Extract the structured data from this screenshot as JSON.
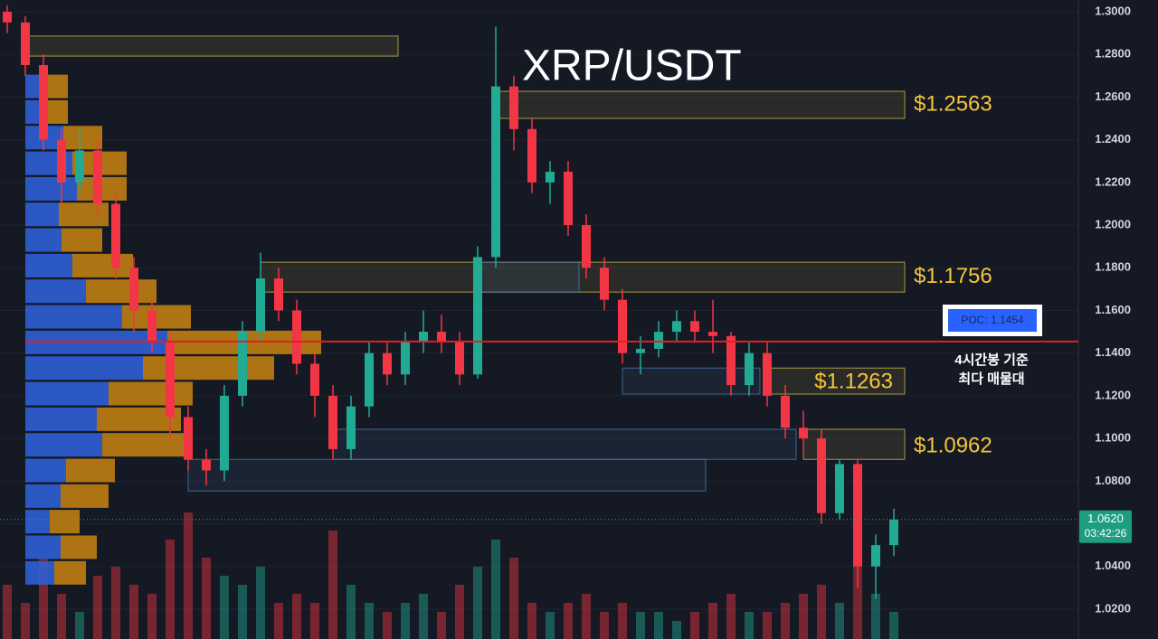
{
  "chart_data": {
    "type": "candlestick",
    "title": "XRP/USDT",
    "ylim": [
      1.006,
      1.3055
    ],
    "yticks": [
      {
        "value": 1.3,
        "label": "1.3000"
      },
      {
        "value": 1.28,
        "label": "1.2800"
      },
      {
        "value": 1.26,
        "label": "1.2600"
      },
      {
        "value": 1.24,
        "label": "1.2400"
      },
      {
        "value": 1.22,
        "label": "1.2200"
      },
      {
        "value": 1.2,
        "label": "1.2000"
      },
      {
        "value": 1.18,
        "label": "1.1800"
      },
      {
        "value": 1.16,
        "label": "1.1600"
      },
      {
        "value": 1.14,
        "label": "1.1400"
      },
      {
        "value": 1.12,
        "label": "1.1200"
      },
      {
        "value": 1.1,
        "label": "1.1000"
      },
      {
        "value": 1.08,
        "label": "1.0800"
      },
      {
        "value": 1.06,
        "label": "1.0600"
      },
      {
        "value": 1.04,
        "label": "1.0400"
      },
      {
        "value": 1.02,
        "label": "1.0200"
      }
    ],
    "grid": true,
    "up_color": "#22ab94",
    "down_color": "#f23645",
    "open": [
      1.3,
      1.295,
      1.275,
      1.24,
      1.22,
      1.235,
      1.21,
      1.18,
      1.16,
      1.145,
      1.11,
      1.09,
      1.085,
      1.12,
      1.15,
      1.175,
      1.16,
      1.135,
      1.12,
      1.095,
      1.115,
      1.14,
      1.13,
      1.145,
      1.15,
      1.145,
      1.13,
      1.185,
      1.265,
      1.245,
      1.22,
      1.225,
      1.2,
      1.18,
      1.165,
      1.14,
      1.142,
      1.15,
      1.155,
      1.15,
      1.148,
      1.125,
      1.14,
      1.12,
      1.105,
      1.1,
      1.065,
      1.088,
      1.04,
      1.05
    ],
    "high": [
      1.303,
      1.298,
      1.28,
      1.245,
      1.245,
      1.24,
      1.215,
      1.185,
      1.165,
      1.15,
      1.115,
      1.095,
      1.125,
      1.155,
      1.187,
      1.18,
      1.165,
      1.14,
      1.125,
      1.12,
      1.145,
      1.145,
      1.15,
      1.16,
      1.158,
      1.15,
      1.19,
      1.293,
      1.27,
      1.25,
      1.23,
      1.23,
      1.205,
      1.185,
      1.17,
      1.148,
      1.155,
      1.16,
      1.16,
      1.165,
      1.15,
      1.145,
      1.145,
      1.125,
      1.113,
      1.104,
      1.09,
      1.09,
      1.055,
      1.067
    ],
    "low": [
      1.29,
      1.27,
      1.235,
      1.21,
      1.215,
      1.205,
      1.175,
      1.15,
      1.14,
      1.1,
      1.085,
      1.078,
      1.08,
      1.115,
      1.145,
      1.155,
      1.13,
      1.11,
      1.09,
      1.09,
      1.11,
      1.125,
      1.125,
      1.14,
      1.14,
      1.125,
      1.128,
      1.18,
      1.235,
      1.215,
      1.21,
      1.195,
      1.175,
      1.16,
      1.135,
      1.13,
      1.138,
      1.145,
      1.145,
      1.14,
      1.12,
      1.12,
      1.115,
      1.1,
      1.093,
      1.06,
      1.062,
      1.03,
      1.025,
      1.045
    ],
    "close": [
      1.295,
      1.275,
      1.24,
      1.22,
      1.235,
      1.21,
      1.18,
      1.16,
      1.145,
      1.11,
      1.09,
      1.085,
      1.12,
      1.15,
      1.175,
      1.16,
      1.135,
      1.12,
      1.095,
      1.115,
      1.14,
      1.13,
      1.145,
      1.15,
      1.145,
      1.13,
      1.185,
      1.265,
      1.245,
      1.22,
      1.225,
      1.2,
      1.18,
      1.165,
      1.14,
      1.142,
      1.15,
      1.155,
      1.15,
      1.148,
      1.125,
      1.14,
      1.12,
      1.105,
      1.1,
      1.065,
      1.088,
      1.04,
      1.05,
      1.062
    ],
    "volume": [
      60,
      40,
      90,
      50,
      30,
      70,
      80,
      60,
      50,
      110,
      140,
      90,
      70,
      60,
      80,
      40,
      50,
      40,
      120,
      60,
      40,
      30,
      40,
      50,
      30,
      60,
      80,
      110,
      90,
      40,
      30,
      40,
      50,
      30,
      40,
      30,
      30,
      20,
      30,
      40,
      50,
      30,
      30,
      40,
      50,
      60,
      40,
      90,
      50,
      30
    ],
    "volume_profile": {
      "levels": [
        1.265,
        1.253,
        1.241,
        1.229,
        1.217,
        1.205,
        1.193,
        1.181,
        1.169,
        1.157,
        1.145,
        1.133,
        1.121,
        1.109,
        1.097,
        1.085,
        1.073,
        1.061,
        1.049,
        1.037
      ],
      "buy": [
        20,
        20,
        42,
        52,
        57,
        37,
        40,
        52,
        67,
        107,
        157,
        130,
        92,
        79,
        85,
        45,
        39,
        27,
        39,
        32
      ],
      "sell": [
        27,
        27,
        43,
        60,
        55,
        55,
        45,
        67,
        78,
        76,
        170,
        145,
        93,
        93,
        92,
        54,
        53,
        33,
        40,
        35
      ],
      "buy_color": "#2f5fd6",
      "sell_color": "#c98511"
    },
    "zones": [
      {
        "high": 1.2886,
        "low": 1.2792,
        "start": 1,
        "end": 22,
        "color": "#c9b84a"
      },
      {
        "high": 1.2627,
        "low": 1.25,
        "start": 27,
        "end": 50,
        "color": "#c9b84a",
        "value": 1.2563,
        "label": "$1.2563"
      },
      {
        "high": 1.1826,
        "low": 1.1686,
        "start": 14,
        "end": 50,
        "color": "#c9b84a",
        "value": 1.1756,
        "label": "$1.1756"
      },
      {
        "high": 1.133,
        "low": 1.1208,
        "start": 42,
        "end": 50,
        "color": "#c9b84a",
        "value": 1.1263,
        "label": "$1.1263"
      },
      {
        "high": 1.1043,
        "low": 1.0902,
        "start": 44,
        "end": 50,
        "color": "#c9b84a",
        "value": 1.0962,
        "label": "$1.0962"
      },
      {
        "high": 1.1826,
        "low": 1.1686,
        "start": 26,
        "end": 32,
        "color": "#4a78a8"
      },
      {
        "high": 1.133,
        "low": 1.1208,
        "start": 34,
        "end": 42,
        "color": "#4a78a8"
      },
      {
        "high": 1.1043,
        "low": 1.0902,
        "start": 18,
        "end": 44,
        "color": "#4a78a8"
      },
      {
        "high": 1.0902,
        "low": 1.0754,
        "start": 10,
        "end": 39,
        "color": "#4a78a8"
      }
    ],
    "poc": {
      "value": 1.1454,
      "label": "POC: 1.1454",
      "color": "#e02020"
    },
    "poc_note": [
      "4시간봉 기준",
      "최다 매물대"
    ],
    "last_price": {
      "value": 1.062,
      "label": "1.0620"
    },
    "countdown": "03:42:26"
  }
}
